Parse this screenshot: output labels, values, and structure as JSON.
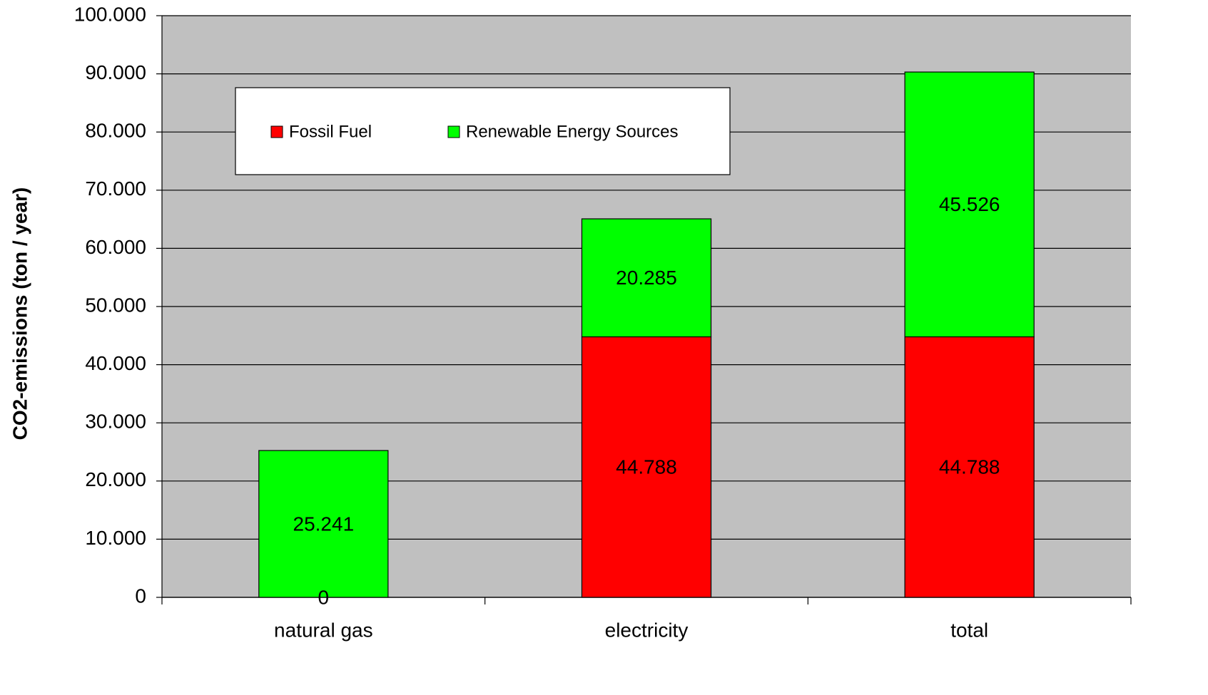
{
  "chart_data": {
    "type": "stacked_bar",
    "y_label": "CO2-emissions (ton / year)",
    "categories": [
      "natural gas",
      "electricity",
      "total"
    ],
    "series": [
      {
        "name": "Fossil Fuel",
        "color": "#ff0000",
        "values": [
          0,
          44788,
          44788
        ],
        "value_labels": [
          "0",
          "44.788",
          "44.788"
        ]
      },
      {
        "name": "Renewable Energy Sources",
        "color": "#00ff00",
        "values": [
          25241,
          20285,
          45526
        ],
        "value_labels": [
          "25.241",
          "20.285",
          "45.526"
        ]
      }
    ],
    "ylim": [
      0,
      100000
    ],
    "yticks": [
      0,
      {
        "value": 10000,
        "label": "10.000"
      },
      {
        "value": 20000,
        "label": "20.000"
      },
      {
        "value": 30000,
        "label": "30.000"
      },
      {
        "value": 40000,
        "label": "40.000"
      },
      {
        "value": 50000,
        "label": "50.000"
      },
      {
        "value": 60000,
        "label": "60.000"
      },
      {
        "value": 70000,
        "label": "70.000"
      },
      {
        "value": 80000,
        "label": "80.000"
      },
      {
        "value": 90000,
        "label": "90.000"
      },
      {
        "value": 100000,
        "label": "100.000"
      }
    ],
    "grid": true,
    "legend": "top-left"
  }
}
